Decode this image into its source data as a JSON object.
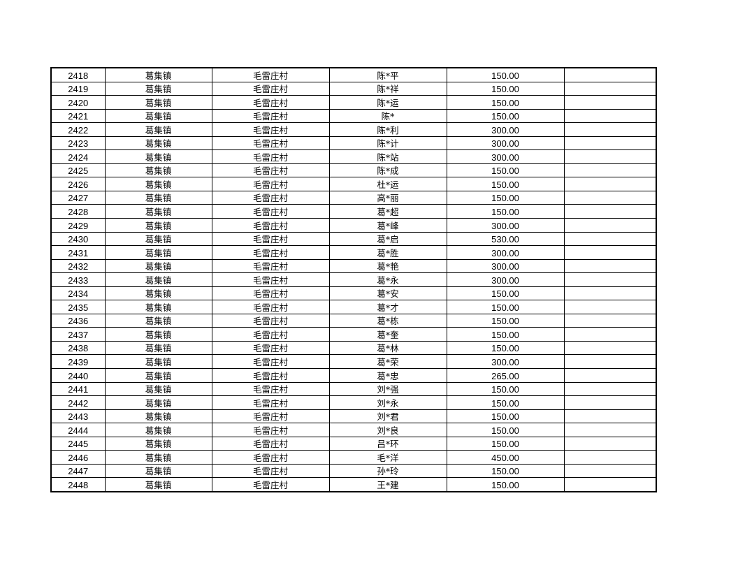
{
  "table": {
    "rows": [
      [
        "2418",
        "葛集镇",
        "毛雷庄村",
        "陈*平",
        "150.00",
        ""
      ],
      [
        "2419",
        "葛集镇",
        "毛雷庄村",
        "陈*祥",
        "150.00",
        ""
      ],
      [
        "2420",
        "葛集镇",
        "毛雷庄村",
        "陈*运",
        "150.00",
        ""
      ],
      [
        "2421",
        "葛集镇",
        "毛雷庄村",
        "陈*",
        "150.00",
        ""
      ],
      [
        "2422",
        "葛集镇",
        "毛雷庄村",
        "陈*利",
        "300.00",
        ""
      ],
      [
        "2423",
        "葛集镇",
        "毛雷庄村",
        "陈*计",
        "300.00",
        ""
      ],
      [
        "2424",
        "葛集镇",
        "毛雷庄村",
        "陈*站",
        "300.00",
        ""
      ],
      [
        "2425",
        "葛集镇",
        "毛雷庄村",
        "陈*成",
        "150.00",
        ""
      ],
      [
        "2426",
        "葛集镇",
        "毛雷庄村",
        "杜*运",
        "150.00",
        ""
      ],
      [
        "2427",
        "葛集镇",
        "毛雷庄村",
        "高*丽",
        "150.00",
        ""
      ],
      [
        "2428",
        "葛集镇",
        "毛雷庄村",
        "葛*超",
        "150.00",
        ""
      ],
      [
        "2429",
        "葛集镇",
        "毛雷庄村",
        "葛*峰",
        "300.00",
        ""
      ],
      [
        "2430",
        "葛集镇",
        "毛雷庄村",
        "葛*启",
        "530.00",
        ""
      ],
      [
        "2431",
        "葛集镇",
        "毛雷庄村",
        "葛*胜",
        "300.00",
        ""
      ],
      [
        "2432",
        "葛集镇",
        "毛雷庄村",
        "葛*艳",
        "300.00",
        ""
      ],
      [
        "2433",
        "葛集镇",
        "毛雷庄村",
        "葛*永",
        "300.00",
        ""
      ],
      [
        "2434",
        "葛集镇",
        "毛雷庄村",
        "葛*安",
        "150.00",
        ""
      ],
      [
        "2435",
        "葛集镇",
        "毛雷庄村",
        "葛*才",
        "150.00",
        ""
      ],
      [
        "2436",
        "葛集镇",
        "毛雷庄村",
        "葛*栋",
        "150.00",
        ""
      ],
      [
        "2437",
        "葛集镇",
        "毛雷庄村",
        "葛*奎",
        "150.00",
        ""
      ],
      [
        "2438",
        "葛集镇",
        "毛雷庄村",
        "葛*林",
        "150.00",
        ""
      ],
      [
        "2439",
        "葛集镇",
        "毛雷庄村",
        "葛*荣",
        "300.00",
        ""
      ],
      [
        "2440",
        "葛集镇",
        "毛雷庄村",
        "葛*忠",
        "265.00",
        ""
      ],
      [
        "2441",
        "葛集镇",
        "毛雷庄村",
        "刘*强",
        "150.00",
        ""
      ],
      [
        "2442",
        "葛集镇",
        "毛雷庄村",
        "刘*永",
        "150.00",
        ""
      ],
      [
        "2443",
        "葛集镇",
        "毛雷庄村",
        "刘*君",
        "150.00",
        ""
      ],
      [
        "2444",
        "葛集镇",
        "毛雷庄村",
        "刘*良",
        "150.00",
        ""
      ],
      [
        "2445",
        "葛集镇",
        "毛雷庄村",
        "吕*环",
        "150.00",
        ""
      ],
      [
        "2446",
        "葛集镇",
        "毛雷庄村",
        "毛*洋",
        "450.00",
        ""
      ],
      [
        "2447",
        "葛集镇",
        "毛雷庄村",
        "孙*玲",
        "150.00",
        ""
      ],
      [
        "2448",
        "葛集镇",
        "毛雷庄村",
        "王*建",
        "150.00",
        ""
      ]
    ]
  }
}
